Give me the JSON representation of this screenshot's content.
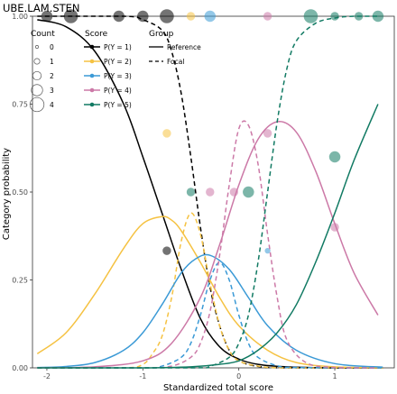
{
  "chart_data": {
    "type": "line",
    "title": "UBE.LAM.STEN",
    "xlabel": "Standardized total score",
    "ylabel": "Category probability",
    "xlim": [
      -2.15,
      1.62
    ],
    "ylim": [
      0,
      1
    ],
    "x_ticks": [
      -2,
      -1,
      0,
      1
    ],
    "x_tick_labels": [
      "-2",
      "-1",
      "0",
      "1"
    ],
    "y_ticks": [
      0,
      0.25,
      0.5,
      0.75,
      1
    ],
    "y_tick_labels": [
      "0.00",
      "0.25",
      "0.50",
      "0.75",
      "1.00"
    ],
    "grid": false,
    "legend": {
      "placement": "top-left",
      "count": {
        "title": "Count",
        "labels": [
          "0",
          "1",
          "2",
          "3",
          "4"
        ],
        "sizes": [
          0,
          1,
          2,
          3,
          4
        ]
      },
      "score": {
        "title": "Score",
        "labels": [
          "P(Y = 1)",
          "P(Y = 2)",
          "P(Y = 3)",
          "P(Y = 4)",
          "P(Y = 5)"
        ]
      },
      "group": {
        "title": "Group",
        "labels": [
          "Reference",
          "Focal"
        ]
      }
    },
    "colors": {
      "P(Y = 1)": "#000000",
      "P(Y = 2)": "#F5C242",
      "P(Y = 3)": "#3B9AD6",
      "P(Y = 4)": "#CC79A7",
      "P(Y = 5)": "#117A63"
    },
    "series": [
      {
        "score": "P(Y = 1)",
        "group": "Reference",
        "x": [
          -2.1,
          -1.8,
          -1.5,
          -1.2,
          -1.0,
          -0.8,
          -0.6,
          -0.4,
          -0.2,
          0.0,
          0.2,
          0.5,
          1.0,
          1.5
        ],
        "y": [
          0.99,
          0.97,
          0.9,
          0.75,
          0.6,
          0.44,
          0.28,
          0.14,
          0.06,
          0.025,
          0.01,
          0.003,
          0.0,
          0.0
        ]
      },
      {
        "score": "P(Y = 1)",
        "group": "Focal",
        "x": [
          -2.1,
          -1.2,
          -1.0,
          -0.8,
          -0.7,
          -0.6,
          -0.5,
          -0.4,
          -0.3,
          -0.2,
          -0.1,
          0.0,
          0.2,
          0.5,
          1.5
        ],
        "y": [
          1.0,
          1.0,
          0.99,
          0.96,
          0.9,
          0.78,
          0.6,
          0.4,
          0.23,
          0.12,
          0.05,
          0.02,
          0.004,
          0.0,
          0.0
        ]
      },
      {
        "score": "P(Y = 2)",
        "group": "Reference",
        "x": [
          -2.1,
          -1.8,
          -1.5,
          -1.2,
          -1.0,
          -0.8,
          -0.7,
          -0.6,
          -0.4,
          -0.2,
          0.0,
          0.3,
          0.6,
          1.0,
          1.5
        ],
        "y": [
          0.04,
          0.1,
          0.21,
          0.34,
          0.41,
          0.43,
          0.42,
          0.39,
          0.3,
          0.2,
          0.12,
          0.05,
          0.015,
          0.003,
          0.0
        ]
      },
      {
        "score": "P(Y = 2)",
        "group": "Focal",
        "x": [
          -2.1,
          -1.2,
          -1.0,
          -0.9,
          -0.8,
          -0.7,
          -0.6,
          -0.5,
          -0.4,
          -0.3,
          -0.2,
          -0.1,
          0.0,
          0.2,
          0.5,
          1.5
        ],
        "y": [
          0.0,
          0.0,
          0.01,
          0.04,
          0.09,
          0.2,
          0.36,
          0.44,
          0.38,
          0.24,
          0.12,
          0.05,
          0.02,
          0.005,
          0.0,
          0.0
        ]
      },
      {
        "score": "P(Y = 3)",
        "group": "Reference",
        "x": [
          -2.1,
          -1.8,
          -1.5,
          -1.2,
          -1.0,
          -0.8,
          -0.6,
          -0.45,
          -0.3,
          -0.1,
          0.1,
          0.3,
          0.6,
          1.0,
          1.5
        ],
        "y": [
          0.001,
          0.004,
          0.015,
          0.05,
          0.1,
          0.18,
          0.27,
          0.31,
          0.32,
          0.28,
          0.2,
          0.12,
          0.05,
          0.012,
          0.002
        ]
      },
      {
        "score": "P(Y = 3)",
        "group": "Focal",
        "x": [
          -2.1,
          -1.0,
          -0.8,
          -0.6,
          -0.5,
          -0.4,
          -0.3,
          -0.2,
          -0.1,
          0.0,
          0.1,
          0.2,
          0.4,
          0.6,
          1.5
        ],
        "y": [
          0.0,
          0.0,
          0.005,
          0.03,
          0.07,
          0.15,
          0.25,
          0.3,
          0.25,
          0.15,
          0.07,
          0.03,
          0.006,
          0.001,
          0.0
        ]
      },
      {
        "score": "P(Y = 4)",
        "group": "Reference",
        "x": [
          -2.1,
          -1.5,
          -1.0,
          -0.7,
          -0.4,
          -0.2,
          0.0,
          0.2,
          0.4,
          0.6,
          0.8,
          1.0,
          1.2,
          1.45
        ],
        "y": [
          0.0,
          0.003,
          0.02,
          0.07,
          0.2,
          0.35,
          0.52,
          0.65,
          0.7,
          0.67,
          0.56,
          0.41,
          0.27,
          0.15
        ]
      },
      {
        "score": "P(Y = 4)",
        "group": "Focal",
        "x": [
          -2.1,
          -1.0,
          -0.7,
          -0.5,
          -0.4,
          -0.3,
          -0.2,
          -0.1,
          0.0,
          0.1,
          0.2,
          0.3,
          0.4,
          0.5,
          0.7,
          1.0,
          1.45
        ],
        "y": [
          0.0,
          0.0,
          0.005,
          0.03,
          0.07,
          0.16,
          0.32,
          0.52,
          0.68,
          0.69,
          0.58,
          0.38,
          0.2,
          0.08,
          0.015,
          0.001,
          0.0
        ]
      },
      {
        "score": "P(Y = 5)",
        "group": "Reference",
        "x": [
          -2.1,
          -1.0,
          -0.5,
          -0.2,
          0.0,
          0.2,
          0.4,
          0.6,
          0.8,
          1.0,
          1.2,
          1.45
        ],
        "y": [
          0.0,
          0.0,
          0.003,
          0.01,
          0.02,
          0.05,
          0.1,
          0.18,
          0.3,
          0.44,
          0.59,
          0.75
        ]
      },
      {
        "score": "P(Y = 5)",
        "group": "Focal",
        "x": [
          -2.1,
          -0.5,
          -0.3,
          -0.1,
          0.0,
          0.1,
          0.2,
          0.3,
          0.4,
          0.5,
          0.6,
          0.8,
          1.0,
          1.2,
          1.45
        ],
        "y": [
          0.0,
          0.0,
          0.005,
          0.03,
          0.07,
          0.15,
          0.3,
          0.5,
          0.7,
          0.85,
          0.93,
          0.98,
          0.995,
          1.0,
          1.0
        ]
      }
    ],
    "points": [
      {
        "score": "P(Y = 1)",
        "x": -2.0,
        "y": 1.0,
        "count": 3
      },
      {
        "score": "P(Y = 1)",
        "x": -1.75,
        "y": 1.0,
        "count": 4
      },
      {
        "score": "P(Y = 1)",
        "x": -1.25,
        "y": 1.0,
        "count": 3
      },
      {
        "score": "P(Y = 1)",
        "x": -1.0,
        "y": 1.0,
        "count": 3
      },
      {
        "score": "P(Y = 1)",
        "x": -0.75,
        "y": 1.0,
        "count": 4
      },
      {
        "score": "P(Y = 1)",
        "x": -0.75,
        "y": 0.333,
        "count": 2
      },
      {
        "score": "P(Y = 2)",
        "x": -0.75,
        "y": 0.667,
        "count": 2
      },
      {
        "score": "P(Y = 2)",
        "x": -0.5,
        "y": 1.0,
        "count": 2
      },
      {
        "score": "P(Y = 3)",
        "x": -0.3,
        "y": 1.0,
        "count": 3
      },
      {
        "score": "P(Y = 3)",
        "x": 0.3,
        "y": 0.333,
        "count": 1
      },
      {
        "score": "P(Y = 4)",
        "x": -0.3,
        "y": 0.5,
        "count": 2
      },
      {
        "score": "P(Y = 4)",
        "x": 0.3,
        "y": 1.0,
        "count": 2
      },
      {
        "score": "P(Y = 4)",
        "x": 0.3,
        "y": 0.667,
        "count": 2
      },
      {
        "score": "P(Y = 4)",
        "x": 1.0,
        "y": 0.4,
        "count": 2
      },
      {
        "score": "P(Y = 4)",
        "x": -0.05,
        "y": 0.5,
        "count": 2
      },
      {
        "score": "P(Y = 5)",
        "x": -0.5,
        "y": 0.5,
        "count": 2
      },
      {
        "score": "P(Y = 5)",
        "x": 0.1,
        "y": 0.5,
        "count": 3
      },
      {
        "score": "P(Y = 5)",
        "x": 0.75,
        "y": 1.0,
        "count": 4
      },
      {
        "score": "P(Y = 5)",
        "x": 1.0,
        "y": 0.6,
        "count": 3
      },
      {
        "score": "P(Y = 5)",
        "x": 1.0,
        "y": 1.0,
        "count": 2
      },
      {
        "score": "P(Y = 5)",
        "x": 1.25,
        "y": 1.0,
        "count": 2
      },
      {
        "score": "P(Y = 5)",
        "x": 1.45,
        "y": 1.0,
        "count": 3
      }
    ]
  }
}
